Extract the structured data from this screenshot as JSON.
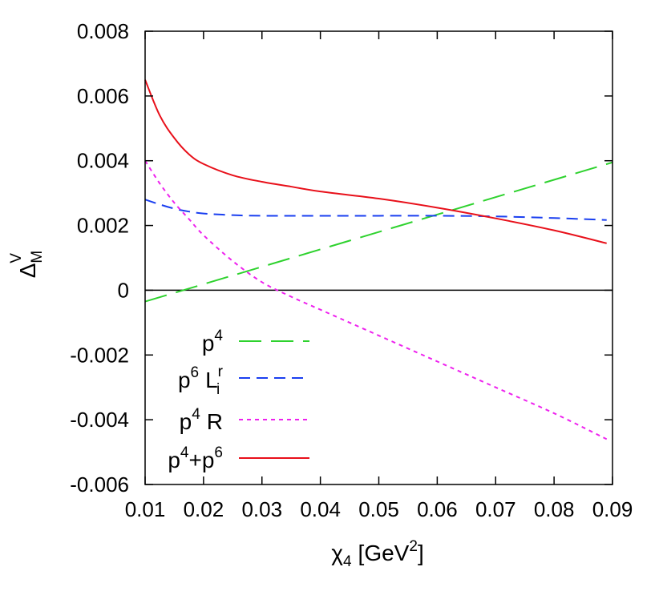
{
  "chart_data": {
    "type": "line",
    "xlim": [
      0.01,
      0.09
    ],
    "ylim": [
      -0.006,
      0.008
    ],
    "x_ticks": [
      "0.01",
      "0.02",
      "0.03",
      "0.04",
      "0.05",
      "0.06",
      "0.07",
      "0.08",
      "0.09"
    ],
    "y_ticks": [
      "-0.006",
      "-0.004",
      "-0.002",
      "0",
      "0.002",
      "0.004",
      "0.006",
      "0.008"
    ],
    "x_tick_values": [
      0.01,
      0.02,
      0.03,
      0.04,
      0.05,
      0.06,
      0.07,
      0.08,
      0.09
    ],
    "y_tick_values": [
      -0.006,
      -0.004,
      -0.002,
      0,
      0.002,
      0.004,
      0.006,
      0.008
    ],
    "xlabel": {
      "main": "χ",
      "sub": "4",
      "pre": "[GeV",
      "sup": "2",
      "post": "]"
    },
    "ylabel": {
      "main": "Δ",
      "sup": "V",
      "sub": "M"
    },
    "zero_line": true,
    "legend_position": "bottom-left",
    "series": [
      {
        "key": "p4",
        "legend": {
          "a": "p",
          "a_sup": "4"
        },
        "color": "#2ed22e",
        "dash": "28,12",
        "x": [
          0.01,
          0.09
        ],
        "y": [
          -0.00035,
          0.00395
        ]
      },
      {
        "key": "p6Lr",
        "legend": {
          "a": "p",
          "a_sup": "6",
          "b": "L",
          "b_sup": "r",
          "b_sub": "i"
        },
        "color": "#1a3ff0",
        "dash": "14,8",
        "x": [
          0.01,
          0.0125,
          0.015,
          0.0175,
          0.02,
          0.025,
          0.03,
          0.04,
          0.05,
          0.06,
          0.07,
          0.08,
          0.089
        ],
        "y": [
          0.0028,
          0.00265,
          0.00252,
          0.00243,
          0.00237,
          0.00232,
          0.0023,
          0.0023,
          0.0023,
          0.0023,
          0.00228,
          0.00223,
          0.00217
        ]
      },
      {
        "key": "p4R",
        "legend": {
          "a": "p",
          "a_sup": "4",
          "b": "R"
        },
        "color": "#ee22ee",
        "dash": "5,5",
        "x": [
          0.01,
          0.0125,
          0.015,
          0.0175,
          0.02,
          0.025,
          0.03,
          0.035,
          0.04,
          0.05,
          0.06,
          0.07,
          0.08,
          0.089
        ],
        "y": [
          0.004,
          0.0033,
          0.0027,
          0.0022,
          0.0017,
          0.0009,
          0.00025,
          -0.0002,
          -0.0006,
          -0.0014,
          -0.0022,
          -0.003,
          -0.0038,
          -0.0046
        ]
      },
      {
        "key": "p4p6",
        "legend": {
          "a": "p",
          "a_sup": "4",
          "b": "+p",
          "b_sup": "6"
        },
        "color": "#e8101a",
        "dash": "",
        "x": [
          0.01,
          0.0125,
          0.015,
          0.0175,
          0.02,
          0.025,
          0.03,
          0.035,
          0.04,
          0.05,
          0.06,
          0.07,
          0.08,
          0.089
        ],
        "y": [
          0.0065,
          0.0054,
          0.0047,
          0.0042,
          0.0039,
          0.00355,
          0.00335,
          0.0032,
          0.00305,
          0.00283,
          0.00255,
          0.00222,
          0.00185,
          0.00145
        ]
      }
    ]
  }
}
